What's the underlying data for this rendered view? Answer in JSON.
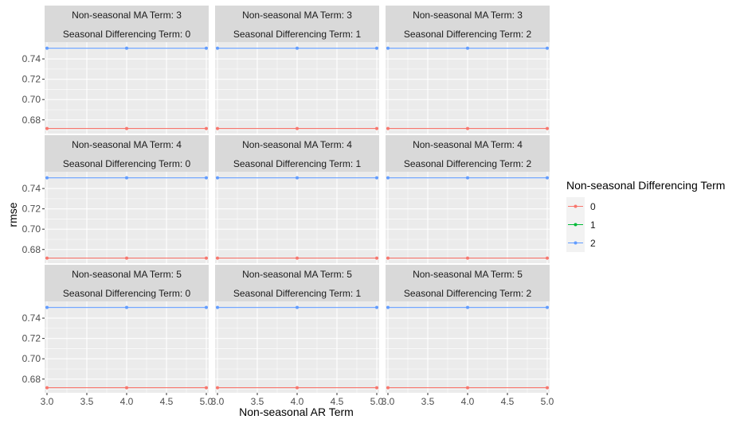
{
  "chart_data": {
    "type": "line",
    "xlabel": "Non-seasonal AR Term",
    "ylabel": "rmse",
    "xlim": [
      2.97,
      5.03
    ],
    "ylim": [
      0.6665,
      0.7565
    ],
    "x_ticks": [
      "3.0",
      "3.5",
      "4.0",
      "4.5",
      "5.0"
    ],
    "x_tick_values": [
      3.0,
      3.5,
      4.0,
      4.5,
      5.0
    ],
    "y_ticks": [
      "0.68",
      "0.70",
      "0.72",
      "0.74"
    ],
    "y_tick_values": [
      0.68,
      0.7,
      0.72,
      0.74
    ],
    "grid": true,
    "legend": {
      "title": "Non-seasonal Differencing Term",
      "position": "right",
      "entries": [
        {
          "label": "0",
          "color": "#F8766D"
        },
        {
          "label": "1",
          "color": "#00BA38"
        },
        {
          "label": "2",
          "color": "#619CFF"
        }
      ]
    },
    "panels": [
      {
        "strip_top": "Non-seasonal MA Term: 3",
        "strip_bottom": "Seasonal Differencing Term: 0",
        "series": [
          {
            "name": "0",
            "x": [
              3,
              4,
              5
            ],
            "y": [
              0.6715,
              0.6715,
              0.6715
            ]
          },
          {
            "name": "2",
            "x": [
              3,
              4,
              5
            ],
            "y": [
              0.7505,
              0.7505,
              0.7505
            ]
          }
        ]
      },
      {
        "strip_top": "Non-seasonal MA Term: 3",
        "strip_bottom": "Seasonal Differencing Term: 1",
        "series": [
          {
            "name": "0",
            "x": [
              3,
              4,
              5
            ],
            "y": [
              0.6715,
              0.6715,
              0.6715
            ]
          },
          {
            "name": "2",
            "x": [
              3,
              4,
              5
            ],
            "y": [
              0.7505,
              0.7505,
              0.7505
            ]
          }
        ]
      },
      {
        "strip_top": "Non-seasonal MA Term: 3",
        "strip_bottom": "Seasonal Differencing Term: 2",
        "series": [
          {
            "name": "0",
            "x": [
              3,
              4,
              5
            ],
            "y": [
              0.6715,
              0.6715,
              0.6715
            ]
          },
          {
            "name": "2",
            "x": [
              3,
              4,
              5
            ],
            "y": [
              0.7505,
              0.7505,
              0.7505
            ]
          }
        ]
      },
      {
        "strip_top": "Non-seasonal MA Term: 4",
        "strip_bottom": "Seasonal Differencing Term: 0",
        "series": [
          {
            "name": "0",
            "x": [
              3,
              4,
              5
            ],
            "y": [
              0.6715,
              0.6715,
              0.6715
            ]
          },
          {
            "name": "2",
            "x": [
              3,
              4,
              5
            ],
            "y": [
              0.7505,
              0.7505,
              0.7505
            ]
          }
        ]
      },
      {
        "strip_top": "Non-seasonal MA Term: 4",
        "strip_bottom": "Seasonal Differencing Term: 1",
        "series": [
          {
            "name": "0",
            "x": [
              3,
              4,
              5
            ],
            "y": [
              0.6715,
              0.6715,
              0.6715
            ]
          },
          {
            "name": "2",
            "x": [
              3,
              4,
              5
            ],
            "y": [
              0.7505,
              0.7505,
              0.7505
            ]
          }
        ]
      },
      {
        "strip_top": "Non-seasonal MA Term: 4",
        "strip_bottom": "Seasonal Differencing Term: 2",
        "series": [
          {
            "name": "0",
            "x": [
              3,
              4,
              5
            ],
            "y": [
              0.6715,
              0.6715,
              0.6715
            ]
          },
          {
            "name": "2",
            "x": [
              3,
              4,
              5
            ],
            "y": [
              0.7505,
              0.7505,
              0.7505
            ]
          }
        ]
      },
      {
        "strip_top": "Non-seasonal MA Term: 5",
        "strip_bottom": "Seasonal Differencing Term: 0",
        "series": [
          {
            "name": "0",
            "x": [
              3,
              4,
              5
            ],
            "y": [
              0.6715,
              0.6715,
              0.6715
            ]
          },
          {
            "name": "2",
            "x": [
              3,
              4,
              5
            ],
            "y": [
              0.7505,
              0.7505,
              0.7505
            ]
          }
        ]
      },
      {
        "strip_top": "Non-seasonal MA Term: 5",
        "strip_bottom": "Seasonal Differencing Term: 1",
        "series": [
          {
            "name": "0",
            "x": [
              3,
              4,
              5
            ],
            "y": [
              0.6715,
              0.6715,
              0.6715
            ]
          },
          {
            "name": "2",
            "x": [
              3,
              4,
              5
            ],
            "y": [
              0.7505,
              0.7505,
              0.7505
            ]
          }
        ]
      },
      {
        "strip_top": "Non-seasonal MA Term: 5",
        "strip_bottom": "Seasonal Differencing Term: 2",
        "series": [
          {
            "name": "0",
            "x": [
              3,
              4,
              5
            ],
            "y": [
              0.6715,
              0.6715,
              0.6715
            ]
          },
          {
            "name": "2",
            "x": [
              3,
              4,
              5
            ],
            "y": [
              0.7505,
              0.7505,
              0.7505
            ]
          }
        ]
      }
    ]
  }
}
